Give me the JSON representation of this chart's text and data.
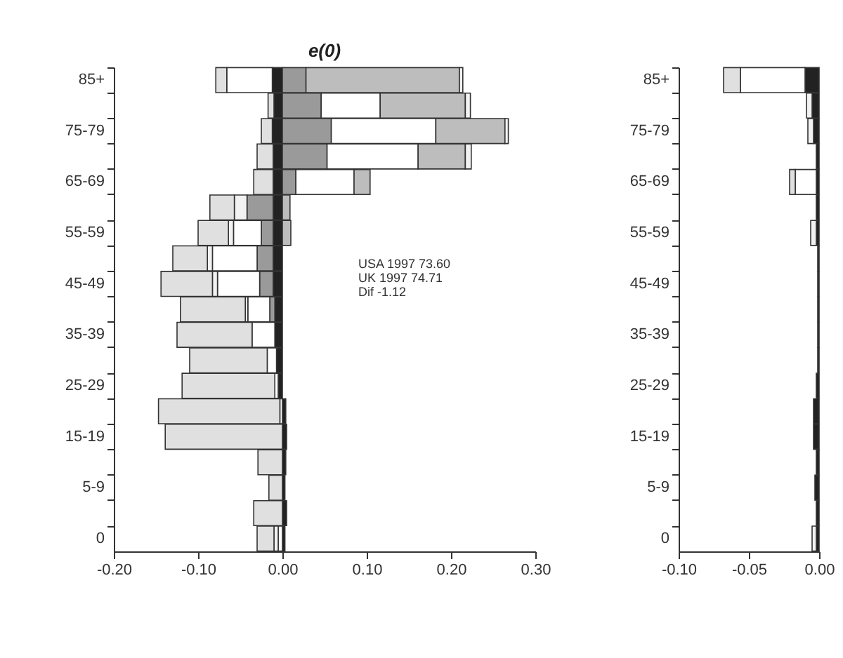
{
  "chart_data": [
    {
      "type": "bar",
      "orientation": "horizontal",
      "stacked": true,
      "title": "e(0)",
      "categories": [
        "85+",
        null,
        "75-79",
        null,
        "65-69",
        null,
        "55-59",
        null,
        "45-49",
        null,
        "35-39",
        null,
        "25-29",
        null,
        "15-19",
        null,
        "5-9",
        null,
        "0"
      ],
      "series": [
        {
          "color": "#222222",
          "values": [
            -0.012,
            -0.01,
            -0.012,
            -0.011,
            -0.011,
            -0.011,
            -0.011,
            -0.011,
            -0.011,
            -0.009,
            -0.009,
            -0.007,
            -0.005,
            0.004,
            0.005,
            0.004,
            0.003,
            0.005,
            0.003
          ]
        },
        {
          "color": "#9a9a9a",
          "values": [
            0.028,
            0.046,
            0.058,
            0.053,
            0.016,
            -0.031,
            -0.014,
            -0.019,
            -0.016,
            -0.006,
            null,
            null,
            null,
            null,
            null,
            null,
            null,
            null,
            null
          ]
        },
        {
          "color": "#ffffff",
          "values": [
            -0.054,
            0.07,
            0.124,
            0.108,
            0.069,
            null,
            -0.033,
            -0.053,
            -0.05,
            -0.026,
            -0.027,
            -0.011,
            -0.004,
            -0.003,
            null,
            null,
            null,
            null,
            -0.005
          ]
        },
        {
          "color": "#bdbdbd",
          "values": [
            0.182,
            0.101,
            0.082,
            0.056,
            0.019,
            0.009,
            0.01,
            null,
            null,
            null,
            null,
            null,
            null,
            null,
            null,
            null,
            null,
            null,
            null
          ]
        },
        {
          "color": "#f2f2f2",
          "values": [
            0.004,
            0.006,
            0.004,
            0.007,
            null,
            -0.015,
            -0.006,
            -0.006,
            -0.006,
            -0.003,
            null,
            null,
            null,
            null,
            null,
            null,
            null,
            null,
            -0.005
          ]
        },
        {
          "color": "#e0e0e0",
          "values": [
            -0.013,
            -0.007,
            -0.013,
            -0.019,
            -0.023,
            -0.029,
            -0.036,
            -0.041,
            -0.061,
            -0.077,
            -0.089,
            -0.092,
            -0.11,
            -0.144,
            -0.139,
            -0.029,
            -0.016,
            -0.034,
            -0.02
          ]
        }
      ],
      "xlim": [
        -0.2,
        0.3
      ],
      "xticks": [
        {
          "value": -0.2,
          "label": "-0.20"
        },
        {
          "value": -0.1,
          "label": "-0.10"
        },
        {
          "value": 0,
          "label": "0.00"
        },
        {
          "value": 0.1,
          "label": "0.10"
        },
        {
          "value": 0.2,
          "label": "0.20"
        },
        {
          "value": 0.3,
          "label": "0.30"
        }
      ],
      "annotations": [
        "USA 1997   73.60",
        "UK    1997   74.71",
        "Dif                 -1.12"
      ]
    },
    {
      "type": "bar",
      "orientation": "horizontal",
      "stacked": true,
      "categories": [
        "85+",
        null,
        "75-79",
        null,
        "65-69",
        null,
        "55-59",
        null,
        "45-49",
        null,
        "35-39",
        null,
        "25-29",
        null,
        "15-19",
        null,
        "5-9",
        null,
        "0"
      ],
      "series": [
        {
          "color": "#222222",
          "values": [
            -0.01,
            -0.005,
            -0.004,
            -0.002,
            -0.002,
            -0.002,
            -0.002,
            -0.001,
            -0.001,
            -0.001,
            -0.001,
            -0.001,
            -0.002,
            -0.004,
            -0.004,
            -0.002,
            -0.003,
            -0.002,
            -0.002
          ]
        },
        {
          "color": "#ffffff",
          "values": [
            -0.046,
            null,
            null,
            null,
            -0.015,
            null,
            null,
            null,
            null,
            null,
            null,
            null,
            null,
            null,
            null,
            null,
            null,
            null,
            null
          ]
        },
        {
          "color": "#f2f2f2",
          "values": [
            null,
            -0.004,
            -0.004,
            null,
            null,
            null,
            -0.004,
            null,
            null,
            null,
            null,
            null,
            null,
            null,
            null,
            null,
            null,
            null,
            -0.003
          ]
        },
        {
          "color": "#e0e0e0",
          "values": [
            -0.012,
            null,
            null,
            null,
            -0.004,
            null,
            null,
            null,
            null,
            null,
            null,
            null,
            null,
            null,
            null,
            null,
            null,
            null,
            null
          ]
        }
      ],
      "xlim": [
        -0.1,
        0.0
      ],
      "xticks": [
        {
          "value": -0.1,
          "label": "-0.10"
        },
        {
          "value": -0.05,
          "label": "-0.05"
        },
        {
          "value": 0,
          "label": "0.00"
        }
      ]
    }
  ]
}
